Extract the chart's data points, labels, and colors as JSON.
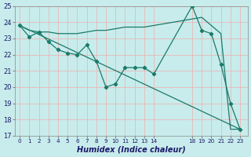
{
  "xlabel": "Humidex (Indice chaleur)",
  "bg_color": "#c8ecec",
  "grid_color": "#e8b8b8",
  "line_color": "#1a7a6a",
  "ylim": [
    17,
    25
  ],
  "yticks": [
    17,
    18,
    19,
    20,
    21,
    22,
    23,
    24,
    25
  ],
  "xtick_positions": [
    0,
    1,
    2,
    3,
    4,
    5,
    6,
    7,
    8,
    9,
    10,
    11,
    12,
    13,
    14,
    18,
    19,
    20,
    21,
    22,
    23
  ],
  "xtick_labels": [
    "0",
    "1",
    "2",
    "3",
    "4",
    "5",
    "6",
    "7",
    "8",
    "9",
    "10",
    "11",
    "12",
    "13",
    "14",
    "18",
    "19",
    "20",
    "21",
    "22",
    "23"
  ],
  "line1_x": [
    0,
    1,
    2,
    3,
    4,
    5,
    6,
    7,
    8,
    9,
    10,
    11,
    12,
    13,
    14,
    18,
    19,
    20,
    21,
    22,
    23
  ],
  "line1_y": [
    23.8,
    23.1,
    23.4,
    22.8,
    22.3,
    22.1,
    22.0,
    22.6,
    21.6,
    20.0,
    20.2,
    21.2,
    21.2,
    21.2,
    20.8,
    25.0,
    23.5,
    23.3,
    21.4,
    19.0,
    17.4
  ],
  "line2_x": [
    0,
    1,
    2,
    3,
    4,
    5,
    6,
    7,
    8,
    9,
    10,
    11,
    12,
    13,
    14,
    18,
    19,
    20,
    21,
    22,
    23
  ],
  "line2_y": [
    23.8,
    23.5,
    23.4,
    23.4,
    23.3,
    23.3,
    23.3,
    23.4,
    23.5,
    23.5,
    23.6,
    23.7,
    23.7,
    23.7,
    23.8,
    24.2,
    24.3,
    23.8,
    23.3,
    17.4,
    17.4
  ],
  "line3_x": [
    0,
    23
  ],
  "line3_y": [
    23.8,
    17.4
  ]
}
